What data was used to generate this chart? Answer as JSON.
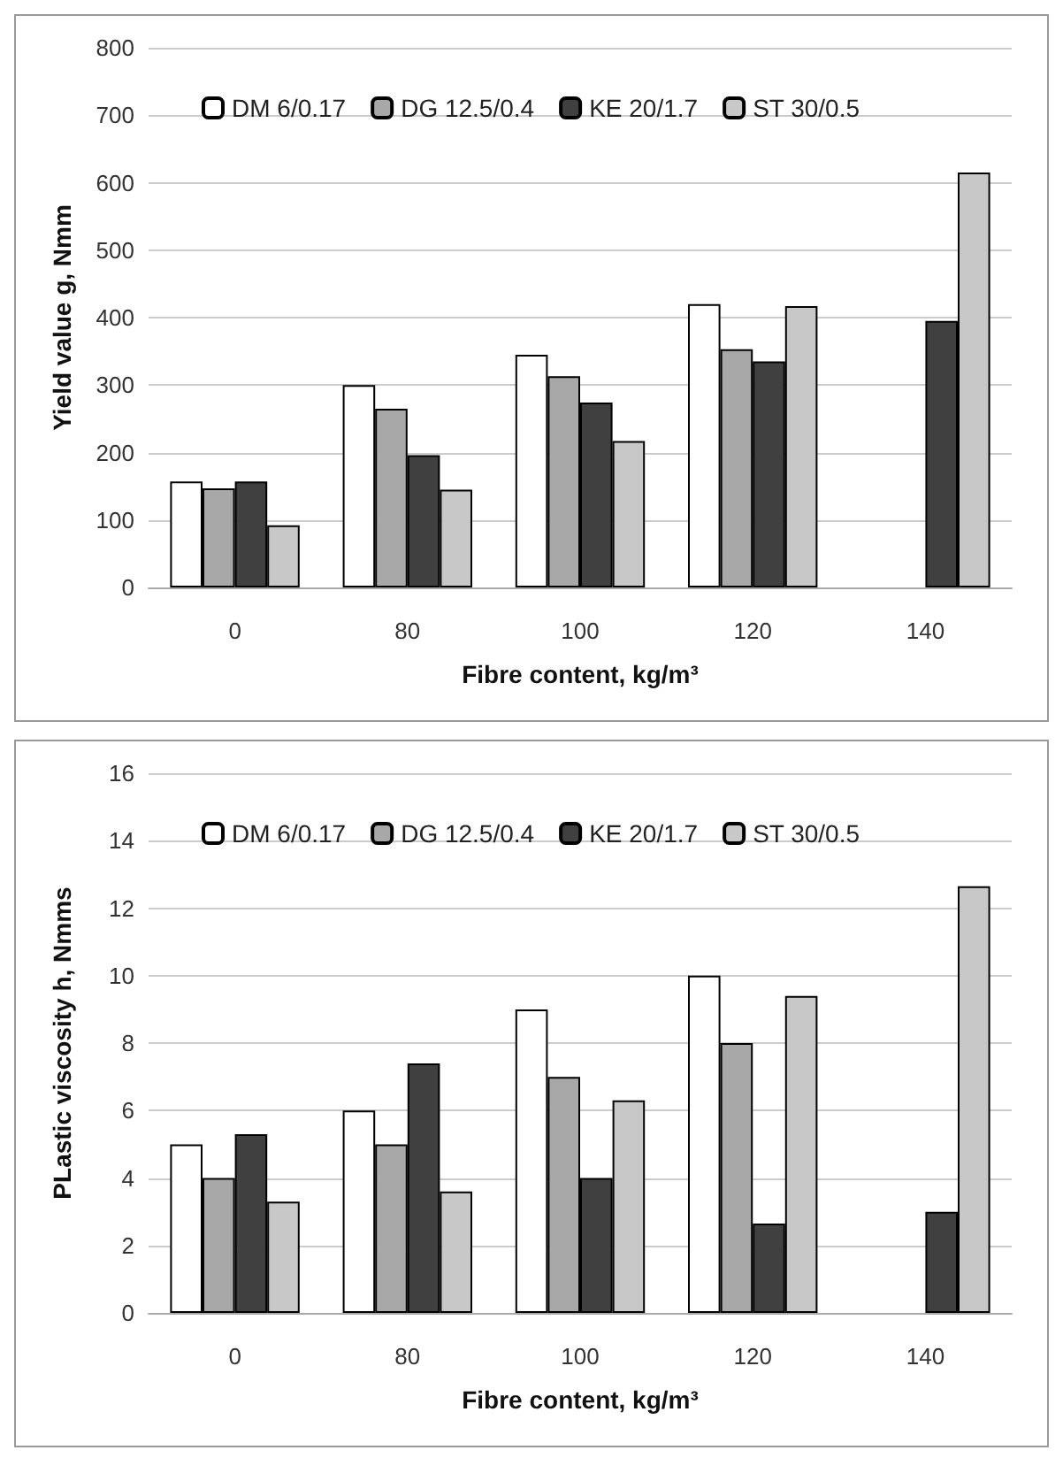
{
  "chart_data": [
    {
      "type": "bar",
      "categories": [
        "0",
        "80",
        "100",
        "120",
        "140"
      ],
      "xlabel": "Fibre content, kg/m³",
      "ylabel": "Yield value g, Nmm",
      "ylim": [
        0,
        800
      ],
      "yticks": [
        0,
        100,
        200,
        300,
        400,
        500,
        600,
        700,
        800
      ],
      "grid": "y",
      "legend": "top",
      "series": [
        {
          "name": "DM 6/0.17",
          "color": "#ffffff",
          "values": [
            157,
            300,
            345,
            420,
            null
          ]
        },
        {
          "name": "DG 12.5/0.4",
          "color": "#a8a8a8",
          "values": [
            147,
            265,
            313,
            353,
            null
          ]
        },
        {
          "name": "KE 20/1.7",
          "color": "#404040",
          "values": [
            157,
            196,
            274,
            335,
            395
          ]
        },
        {
          "name": "ST 30/0.5",
          "color": "#c8c8c8",
          "values": [
            92,
            145,
            217,
            417,
            615
          ]
        }
      ]
    },
    {
      "type": "bar",
      "categories": [
        "0",
        "80",
        "100",
        "120",
        "140"
      ],
      "xlabel": "Fibre content, kg/m³",
      "ylabel": "PLastic viscosity h, Nmms",
      "ylim": [
        0,
        16
      ],
      "yticks": [
        0,
        2,
        4,
        6,
        8,
        10,
        12,
        14,
        16
      ],
      "grid": "y",
      "legend": "top",
      "series": [
        {
          "name": "DM 6/0.17",
          "color": "#ffffff",
          "values": [
            5,
            6,
            9,
            10,
            null
          ]
        },
        {
          "name": "DG 12.5/0.4",
          "color": "#a8a8a8",
          "values": [
            4,
            5,
            7,
            8,
            null
          ]
        },
        {
          "name": "KE 20/1.7",
          "color": "#404040",
          "values": [
            5.3,
            7.4,
            4,
            2.65,
            3
          ]
        },
        {
          "name": "ST 30/0.5",
          "color": "#c8c8c8",
          "values": [
            3.3,
            3.6,
            6.3,
            9.4,
            12.65
          ]
        }
      ]
    }
  ]
}
